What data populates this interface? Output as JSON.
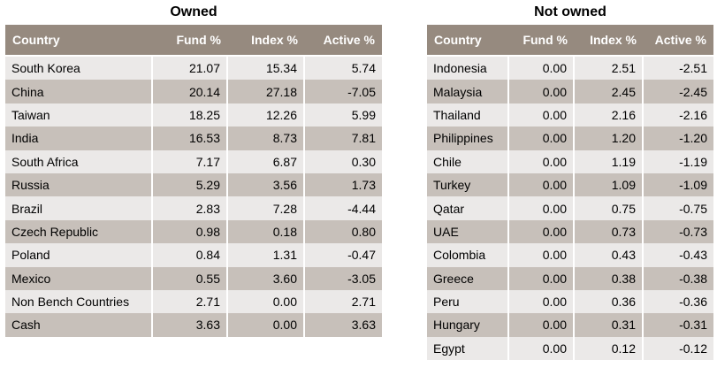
{
  "owned": {
    "title": "Owned",
    "headers": [
      "Country",
      "Fund %",
      "Index %",
      "Active %"
    ],
    "rows": [
      [
        "South Korea",
        "21.07",
        "15.34",
        "5.74"
      ],
      [
        "China",
        "20.14",
        "27.18",
        "-7.05"
      ],
      [
        "Taiwan",
        "18.25",
        "12.26",
        "5.99"
      ],
      [
        "India",
        "16.53",
        "8.73",
        "7.81"
      ],
      [
        "South Africa",
        "7.17",
        "6.87",
        "0.30"
      ],
      [
        "Russia",
        "5.29",
        "3.56",
        "1.73"
      ],
      [
        "Brazil",
        "2.83",
        "7.28",
        "-4.44"
      ],
      [
        "Czech Republic",
        "0.98",
        "0.18",
        "0.80"
      ],
      [
        "Poland",
        "0.84",
        "1.31",
        "-0.47"
      ],
      [
        "Mexico",
        "0.55",
        "3.60",
        "-3.05"
      ],
      [
        "Non Bench Countries",
        "2.71",
        "0.00",
        "2.71"
      ],
      [
        "Cash",
        "3.63",
        "0.00",
        "3.63"
      ]
    ]
  },
  "not_owned": {
    "title": "Not owned",
    "headers": [
      "Country",
      "Fund %",
      "Index %",
      "Active %"
    ],
    "rows": [
      [
        "Indonesia",
        "0.00",
        "2.51",
        "-2.51"
      ],
      [
        "Malaysia",
        "0.00",
        "2.45",
        "-2.45"
      ],
      [
        "Thailand",
        "0.00",
        "2.16",
        "-2.16"
      ],
      [
        "Philippines",
        "0.00",
        "1.20",
        "-1.20"
      ],
      [
        "Chile",
        "0.00",
        "1.19",
        "-1.19"
      ],
      [
        "Turkey",
        "0.00",
        "1.09",
        "-1.09"
      ],
      [
        "Qatar",
        "0.00",
        "0.75",
        "-0.75"
      ],
      [
        "UAE",
        "0.00",
        "0.73",
        "-0.73"
      ],
      [
        "Colombia",
        "0.00",
        "0.43",
        "-0.43"
      ],
      [
        "Greece",
        "0.00",
        "0.38",
        "-0.38"
      ],
      [
        "Peru",
        "0.00",
        "0.36",
        "-0.36"
      ],
      [
        "Hungary",
        "0.00",
        "0.31",
        "-0.31"
      ],
      [
        "Egypt",
        "0.00",
        "0.12",
        "-0.12"
      ]
    ]
  },
  "colors": {
    "header_bg": "#968a7f",
    "row_light": "#ebe9e8",
    "row_dark": "#c7c0ba"
  }
}
